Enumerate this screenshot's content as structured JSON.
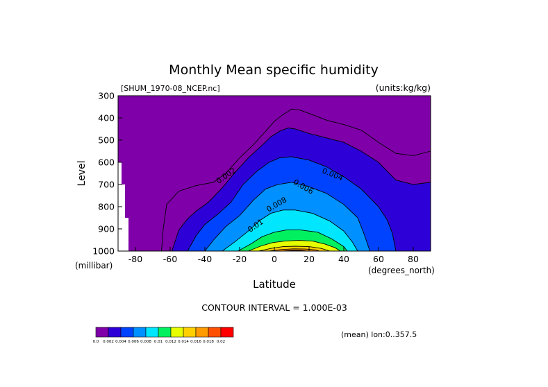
{
  "chart_data": {
    "type": "contour",
    "title": "Monthly Mean specific humidity",
    "file_label": "[SHUM_1970-08_NCEP.nc]",
    "units_label": "(units:kg/kg)",
    "xlabel": "Latitude",
    "ylabel": "Level",
    "x_units": "(degrees_north)",
    "y_units": "(millibar)",
    "xlim": [
      -90,
      90
    ],
    "ylim": [
      1000,
      300
    ],
    "x_ticks": [
      -80,
      -60,
      -40,
      -20,
      0,
      20,
      40,
      60,
      80
    ],
    "x_tick_labels": [
      "-80",
      "-60",
      "-40",
      "-20",
      "0",
      "20",
      "40",
      "60",
      "80"
    ],
    "y_ticks": [
      300,
      400,
      500,
      600,
      700,
      800,
      900,
      1000
    ],
    "y_tick_labels": [
      "300",
      "400",
      "500",
      "600",
      "700",
      "800",
      "900",
      "1000"
    ],
    "contour_interval_text": "CONTOUR INTERVAL = 1.000E-03",
    "mean_text": "(mean) lon:0..357.5",
    "contour_labels": [
      {
        "text": "0.002",
        "lat": -27,
        "lev": 670,
        "angle": -35
      },
      {
        "text": "0.004",
        "lat": 33,
        "lev": 665,
        "angle": 22
      },
      {
        "text": "0.006",
        "lat": 16,
        "lev": 720,
        "angle": 30
      },
      {
        "text": "0.008",
        "lat": 2,
        "lev": 800,
        "angle": -30
      },
      {
        "text": "0.01",
        "lat": -10,
        "lev": 895,
        "angle": -35
      }
    ],
    "levels": [
      0.001,
      0.002,
      0.003,
      0.004,
      0.005,
      0.006,
      0.007,
      0.008,
      0.009,
      0.01,
      0.011,
      0.012,
      0.013,
      0.014,
      0.015,
      0.016,
      0.017,
      0.018
    ],
    "colorbar": {
      "colors": [
        "#7f00a8",
        "#2d00d8",
        "#0043ff",
        "#0090ff",
        "#00e6ff",
        "#00f060",
        "#e6ff00",
        "#ffd000",
        "#ff9a00",
        "#ff5000",
        "#ff0000"
      ],
      "labels": [
        "0.0",
        "0.002",
        "0.004",
        "0.006",
        "0.008",
        "0.01",
        "0.012",
        "0.014",
        "0.016",
        "0.018",
        "0.02"
      ]
    },
    "contours": [
      {
        "value": 0.001,
        "line": true,
        "points": [
          [
            -65,
            1000
          ],
          [
            -64,
            900
          ],
          [
            -62,
            790
          ],
          [
            -55,
            730
          ],
          [
            -45,
            705
          ],
          [
            -35,
            690
          ],
          [
            -28,
            650
          ],
          [
            -20,
            580
          ],
          [
            -12,
            520
          ],
          [
            -5,
            460
          ],
          [
            0,
            415
          ],
          [
            5,
            385
          ],
          [
            10,
            360
          ],
          [
            15,
            365
          ],
          [
            20,
            380
          ],
          [
            30,
            410
          ],
          [
            40,
            430
          ],
          [
            50,
            455
          ],
          [
            60,
            510
          ],
          [
            70,
            560
          ],
          [
            80,
            570
          ],
          [
            90,
            550
          ]
        ]
      },
      {
        "value": 0.002,
        "line": true,
        "points": [
          [
            -59,
            1000
          ],
          [
            -55,
            905
          ],
          [
            -50,
            855
          ],
          [
            -45,
            820
          ],
          [
            -38,
            780
          ],
          [
            -30,
            715
          ],
          [
            -22,
            640
          ],
          [
            -15,
            580
          ],
          [
            -8,
            530
          ],
          [
            -2,
            485
          ],
          [
            3,
            460
          ],
          [
            8,
            445
          ],
          [
            12,
            450
          ],
          [
            20,
            470
          ],
          [
            30,
            490
          ],
          [
            40,
            510
          ],
          [
            50,
            550
          ],
          [
            60,
            600
          ],
          [
            70,
            680
          ],
          [
            80,
            700
          ],
          [
            90,
            690
          ]
        ]
      },
      {
        "value": 0.003,
        "line": false,
        "points": [
          [
            -56,
            1000
          ],
          [
            -50,
            915
          ],
          [
            -45,
            880
          ],
          [
            -38,
            830
          ],
          [
            -30,
            775
          ],
          [
            -22,
            705
          ],
          [
            -15,
            635
          ],
          [
            -8,
            580
          ],
          [
            -2,
            545
          ],
          [
            4,
            520
          ],
          [
            10,
            510
          ],
          [
            18,
            520
          ],
          [
            30,
            550
          ],
          [
            40,
            580
          ],
          [
            50,
            640
          ],
          [
            60,
            715
          ],
          [
            70,
            800
          ],
          [
            75,
            850
          ],
          [
            80,
            880
          ],
          [
            83,
            920
          ],
          [
            87,
            900
          ],
          [
            90,
            880
          ]
        ]
      },
      {
        "value": 0.004,
        "line": true,
        "points": [
          [
            -50,
            1000
          ],
          [
            -45,
            930
          ],
          [
            -40,
            880
          ],
          [
            -32,
            830
          ],
          [
            -25,
            780
          ],
          [
            -18,
            700
          ],
          [
            -10,
            640
          ],
          [
            -3,
            600
          ],
          [
            3,
            580
          ],
          [
            10,
            575
          ],
          [
            20,
            590
          ],
          [
            30,
            620
          ],
          [
            40,
            665
          ],
          [
            50,
            720
          ],
          [
            60,
            800
          ],
          [
            65,
            860
          ],
          [
            68,
            920
          ],
          [
            70,
            1000
          ]
        ]
      },
      {
        "value": 0.005,
        "line": false,
        "points": [
          [
            -45,
            1000
          ],
          [
            -40,
            940
          ],
          [
            -33,
            880
          ],
          [
            -26,
            830
          ],
          [
            -18,
            765
          ],
          [
            -10,
            700
          ],
          [
            -3,
            660
          ],
          [
            3,
            640
          ],
          [
            10,
            630
          ],
          [
            20,
            650
          ],
          [
            30,
            680
          ],
          [
            40,
            730
          ],
          [
            50,
            790
          ],
          [
            55,
            860
          ],
          [
            58,
            940
          ],
          [
            60,
            1000
          ]
        ]
      },
      {
        "value": 0.006,
        "line": true,
        "points": [
          [
            -40,
            1000
          ],
          [
            -35,
            950
          ],
          [
            -28,
            890
          ],
          [
            -20,
            840
          ],
          [
            -12,
            770
          ],
          [
            -5,
            720
          ],
          [
            2,
            700
          ],
          [
            10,
            690
          ],
          [
            20,
            710
          ],
          [
            30,
            740
          ],
          [
            40,
            790
          ],
          [
            48,
            850
          ],
          [
            52,
            930
          ],
          [
            55,
            1000
          ]
        ]
      },
      {
        "value": 0.007,
        "line": false,
        "points": [
          [
            -35,
            1000
          ],
          [
            -28,
            950
          ],
          [
            -20,
            900
          ],
          [
            -12,
            830
          ],
          [
            -5,
            785
          ],
          [
            2,
            760
          ],
          [
            10,
            755
          ],
          [
            20,
            770
          ],
          [
            30,
            800
          ],
          [
            40,
            850
          ],
          [
            46,
            920
          ],
          [
            50,
            1000
          ]
        ]
      },
      {
        "value": 0.008,
        "line": true,
        "points": [
          [
            -30,
            1000
          ],
          [
            -23,
            960
          ],
          [
            -15,
            910
          ],
          [
            -8,
            860
          ],
          [
            -2,
            830
          ],
          [
            5,
            815
          ],
          [
            12,
            815
          ],
          [
            22,
            830
          ],
          [
            32,
            865
          ],
          [
            40,
            910
          ],
          [
            45,
            960
          ],
          [
            48,
            1000
          ]
        ]
      },
      {
        "value": 0.009,
        "line": false,
        "points": [
          [
            -25,
            1000
          ],
          [
            -18,
            965
          ],
          [
            -10,
            920
          ],
          [
            -3,
            885
          ],
          [
            4,
            870
          ],
          [
            12,
            870
          ],
          [
            22,
            880
          ],
          [
            32,
            910
          ],
          [
            40,
            950
          ],
          [
            44,
            1000
          ]
        ]
      },
      {
        "value": 0.01,
        "line": true,
        "points": [
          [
            -21,
            1000
          ],
          [
            -14,
            970
          ],
          [
            -7,
            935
          ],
          [
            0,
            915
          ],
          [
            7,
            905
          ],
          [
            15,
            905
          ],
          [
            25,
            915
          ],
          [
            33,
            945
          ],
          [
            40,
            980
          ],
          [
            42,
            1000
          ]
        ]
      },
      {
        "value": 0.011,
        "line": false,
        "points": [
          [
            -18,
            1000
          ],
          [
            -11,
            975
          ],
          [
            -4,
            950
          ],
          [
            3,
            935
          ],
          [
            10,
            930
          ],
          [
            18,
            930
          ],
          [
            26,
            940
          ],
          [
            33,
            965
          ],
          [
            40,
            1000
          ]
        ]
      },
      {
        "value": 0.012,
        "line": true,
        "points": [
          [
            -15,
            1000
          ],
          [
            -8,
            978
          ],
          [
            -1,
            962
          ],
          [
            6,
            955
          ],
          [
            14,
            952
          ],
          [
            22,
            955
          ],
          [
            29,
            968
          ],
          [
            35,
            985
          ],
          [
            38,
            1000
          ]
        ]
      },
      {
        "value": 0.013,
        "line": false,
        "points": [
          [
            -12,
            1000
          ],
          [
            -5,
            983
          ],
          [
            2,
            972
          ],
          [
            9,
            968
          ],
          [
            17,
            968
          ],
          [
            24,
            973
          ],
          [
            30,
            985
          ],
          [
            35,
            1000
          ]
        ]
      },
      {
        "value": 0.014,
        "line": true,
        "points": [
          [
            -9,
            1000
          ],
          [
            -2,
            988
          ],
          [
            5,
            980
          ],
          [
            12,
            978
          ],
          [
            20,
            980
          ],
          [
            27,
            988
          ],
          [
            32,
            1000
          ]
        ]
      },
      {
        "value": 0.015,
        "line": false,
        "points": [
          [
            -6,
            1000
          ],
          [
            1,
            991
          ],
          [
            8,
            986
          ],
          [
            15,
            985
          ],
          [
            22,
            988
          ],
          [
            28,
            1000
          ]
        ]
      },
      {
        "value": 0.016,
        "line": true,
        "points": [
          [
            -3,
            1000
          ],
          [
            4,
            993
          ],
          [
            11,
            990
          ],
          [
            18,
            991
          ],
          [
            24,
            995
          ],
          [
            26,
            1000
          ]
        ]
      },
      {
        "value": 0.017,
        "line": false,
        "points": [
          [
            1,
            1000
          ],
          [
            7,
            995
          ],
          [
            13,
            994
          ],
          [
            19,
            996
          ],
          [
            22,
            1000
          ]
        ]
      },
      {
        "value": 0.018,
        "line": true,
        "points": [
          [
            5,
            1000
          ],
          [
            10,
            997
          ],
          [
            15,
            997
          ],
          [
            19,
            1000
          ]
        ]
      }
    ],
    "missing": [
      [
        -90,
        600
      ],
      [
        -88,
        600
      ],
      [
        -88,
        700
      ],
      [
        -86,
        700
      ],
      [
        -86,
        850
      ],
      [
        -84,
        850
      ],
      [
        -84,
        1000
      ],
      [
        -90,
        1000
      ]
    ]
  }
}
